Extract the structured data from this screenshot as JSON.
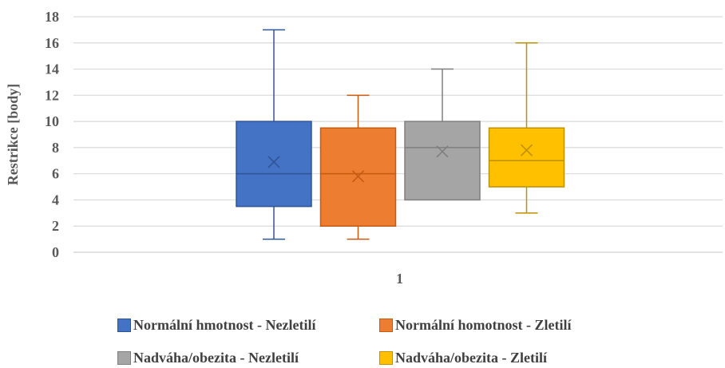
{
  "chart_data": {
    "type": "boxplot",
    "title": "",
    "xlabel": "",
    "ylabel": "Restrikce [body]",
    "ylim": [
      0,
      18
    ],
    "yticks": [
      0,
      2,
      4,
      6,
      8,
      10,
      12,
      14,
      16,
      18
    ],
    "categories": [
      "1"
    ],
    "grid": true,
    "legend_position": "bottom",
    "series": [
      {
        "name": "Normální hmotnost - Nezletilí",
        "color": "#4472C4",
        "stroke": "#2F5597",
        "min": 1,
        "q1": 3.5,
        "median": 6,
        "q3": 10,
        "max": 17,
        "mean": 6.9
      },
      {
        "name": "Normální homotnost - Zletilí",
        "color": "#ED7D31",
        "stroke": "#C55A11",
        "min": 1,
        "q1": 2,
        "median": 6,
        "q3": 9.5,
        "max": 12,
        "mean": 5.8
      },
      {
        "name": "Nadváha/obezita - Nezletilí",
        "color": "#A5A5A5",
        "stroke": "#7F7F7F",
        "min": 4,
        "q1": 4,
        "median": 8,
        "q3": 10,
        "max": 14,
        "mean": 7.7
      },
      {
        "name": "Nadváha/obezita - Zletilí",
        "color": "#FFC000",
        "stroke": "#BF9000",
        "min": 3,
        "q1": 5,
        "median": 7,
        "q3": 9.5,
        "max": 16,
        "mean": 7.8
      }
    ]
  }
}
